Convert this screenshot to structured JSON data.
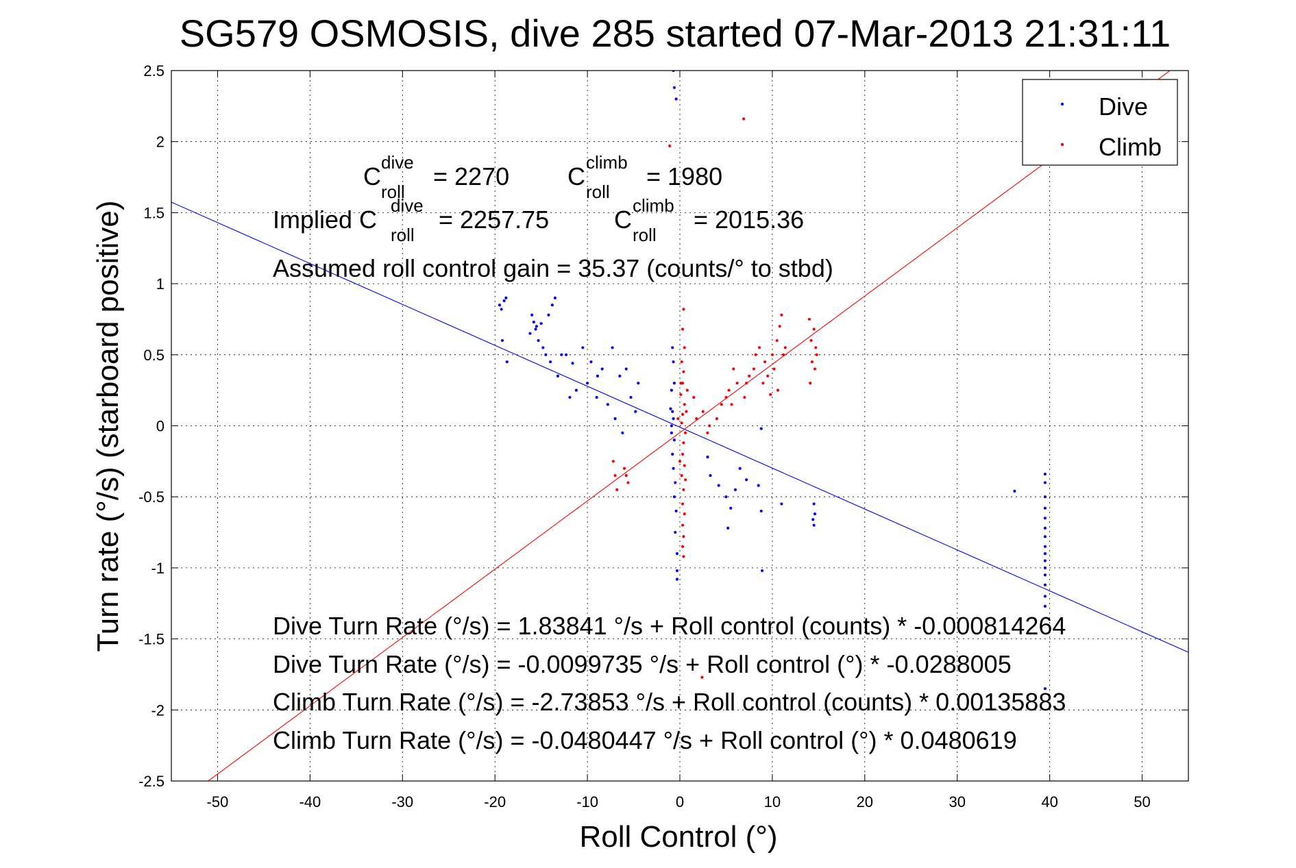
{
  "chart_data": {
    "type": "scatter",
    "title": "SG579 OSMOSIS, dive 285 started 07-Mar-2013 21:31:11",
    "xlabel": "Roll Control (°)",
    "ylabel": "Turn rate (°/s) (starboard positive)",
    "xlim": [
      -55,
      55
    ],
    "ylim": [
      -2.5,
      2.5
    ],
    "xticks": [
      -50,
      -40,
      -30,
      -20,
      -10,
      0,
      10,
      20,
      30,
      40,
      50
    ],
    "yticks": [
      -2.5,
      -2,
      -1.5,
      -1,
      -0.5,
      0,
      0.5,
      1,
      1.5,
      2,
      2.5
    ],
    "grid": "dotted",
    "legend_position": "top-right",
    "series": [
      {
        "name": "Dive",
        "color": "#0000ff",
        "points": [
          [
            -19.5,
            0.85
          ],
          [
            -19.3,
            0.82
          ],
          [
            -19.0,
            0.88
          ],
          [
            -18.8,
            0.9
          ],
          [
            -19.2,
            0.6
          ],
          [
            -18.7,
            0.45
          ],
          [
            -16.0,
            0.78
          ],
          [
            -15.8,
            0.73
          ],
          [
            -15.5,
            0.7
          ],
          [
            -16.2,
            0.65
          ],
          [
            -15.3,
            0.6
          ],
          [
            -15.0,
            0.72
          ],
          [
            -14.8,
            0.55
          ],
          [
            -14.5,
            0.5
          ],
          [
            -15.6,
            0.68
          ],
          [
            -14.2,
            0.78
          ],
          [
            -13.8,
            0.85
          ],
          [
            -13.5,
            0.9
          ],
          [
            -14.0,
            0.45
          ],
          [
            -12.8,
            0.5
          ],
          [
            -12.3,
            0.5
          ],
          [
            -11.6,
            0.44
          ],
          [
            -11.2,
            0.25
          ],
          [
            -10.5,
            0.55
          ],
          [
            -10.0,
            0.3
          ],
          [
            -9.6,
            0.45
          ],
          [
            -9.0,
            0.2
          ],
          [
            -8.4,
            0.4
          ],
          [
            -7.8,
            0.15
          ],
          [
            -7.3,
            0.55
          ],
          [
            -7.0,
            0.05
          ],
          [
            -6.5,
            0.35
          ],
          [
            -5.8,
            0.4
          ],
          [
            -5.3,
            0.2
          ],
          [
            -4.8,
            0.1
          ],
          [
            -4.5,
            0.3
          ],
          [
            -13.2,
            0.35
          ],
          [
            -11.9,
            0.2
          ],
          [
            -8.9,
            0.35
          ],
          [
            -6.2,
            -0.05
          ],
          [
            -0.7,
            2.5
          ],
          [
            -0.6,
            2.38
          ],
          [
            -0.4,
            2.3
          ],
          [
            -0.8,
            0.55
          ],
          [
            -0.7,
            0.45
          ],
          [
            -0.6,
            0.3
          ],
          [
            -0.9,
            0.25
          ],
          [
            -0.8,
            0.1
          ],
          [
            -0.7,
            0.05
          ],
          [
            -0.9,
            0.0
          ],
          [
            -0.6,
            -0.1
          ],
          [
            -0.8,
            -0.2
          ],
          [
            -0.7,
            -0.3
          ],
          [
            -0.5,
            -0.4
          ],
          [
            -0.6,
            -0.5
          ],
          [
            -0.4,
            -0.6
          ],
          [
            -0.5,
            -0.75
          ],
          [
            -0.3,
            -0.9
          ],
          [
            -0.3,
            -1.02
          ],
          [
            -0.3,
            -1.08
          ],
          [
            -0.9,
            -0.05
          ],
          [
            -1.0,
            0.12
          ],
          [
            3.0,
            -0.22
          ],
          [
            3.3,
            -0.35
          ],
          [
            4.2,
            -0.42
          ],
          [
            5.0,
            -0.5
          ],
          [
            5.2,
            -0.72
          ],
          [
            5.5,
            -0.58
          ],
          [
            6.0,
            -0.45
          ],
          [
            6.5,
            -0.3
          ],
          [
            7.2,
            -0.38
          ],
          [
            8.5,
            -0.42
          ],
          [
            8.8,
            -0.6
          ],
          [
            8.9,
            -1.02
          ],
          [
            11.0,
            -0.55
          ],
          [
            14.5,
            -0.55
          ],
          [
            14.6,
            -0.62
          ],
          [
            14.5,
            -0.7
          ],
          [
            14.4,
            -0.66
          ],
          [
            8.8,
            -0.02
          ],
          [
            36.2,
            -0.46
          ],
          [
            39.5,
            -0.34
          ],
          [
            39.5,
            -0.4
          ],
          [
            39.5,
            -0.5
          ],
          [
            39.5,
            -0.58
          ],
          [
            39.5,
            -0.65
          ],
          [
            39.5,
            -0.72
          ],
          [
            39.5,
            -0.78
          ],
          [
            39.5,
            -0.85
          ],
          [
            39.5,
            -0.9
          ],
          [
            39.5,
            -0.95
          ],
          [
            39.5,
            -1.0
          ],
          [
            39.5,
            -1.05
          ],
          [
            39.5,
            -1.12
          ],
          [
            39.5,
            -1.2
          ],
          [
            39.5,
            -1.27
          ],
          [
            39.5,
            -1.85
          ]
        ]
      },
      {
        "name": "Climb",
        "color": "#ff0000",
        "points": [
          [
            -7.2,
            -0.25
          ],
          [
            -7.0,
            -0.35
          ],
          [
            -6.8,
            -0.45
          ],
          [
            -6.0,
            -0.3
          ],
          [
            -5.8,
            -0.35
          ],
          [
            -5.6,
            -0.4
          ],
          [
            -1.1,
            1.97
          ],
          [
            6.9,
            2.16
          ],
          [
            2.4,
            -1.77
          ],
          [
            0.4,
            0.82
          ],
          [
            0.3,
            0.68
          ],
          [
            0.5,
            0.55
          ],
          [
            0.2,
            0.45
          ],
          [
            0.4,
            0.38
          ],
          [
            0.3,
            0.3
          ],
          [
            0.1,
            0.22
          ],
          [
            0.5,
            0.15
          ],
          [
            0.3,
            0.08
          ],
          [
            0.2,
            0.02
          ],
          [
            0.6,
            -0.05
          ],
          [
            0.4,
            -0.12
          ],
          [
            0.3,
            -0.2
          ],
          [
            0.5,
            -0.28
          ],
          [
            0.2,
            -0.35
          ],
          [
            0.4,
            -0.45
          ],
          [
            0.3,
            -0.55
          ],
          [
            0.5,
            -0.62
          ],
          [
            0.3,
            -0.7
          ],
          [
            0.4,
            -0.78
          ],
          [
            0.3,
            -0.85
          ],
          [
            0.4,
            -0.92
          ],
          [
            0.1,
            0.3
          ],
          [
            0.7,
            0.1
          ],
          [
            -0.2,
            0.05
          ],
          [
            0.0,
            -0.25
          ],
          [
            0.8,
            0.25
          ],
          [
            0.6,
            -0.38
          ],
          [
            1.5,
            0.2
          ],
          [
            1.8,
            0.05
          ],
          [
            2.5,
            0.1
          ],
          [
            3.0,
            -0.05
          ],
          [
            3.2,
            0.0
          ],
          [
            4.0,
            0.05
          ],
          [
            4.5,
            0.15
          ],
          [
            5.0,
            0.2
          ],
          [
            5.3,
            0.25
          ],
          [
            5.8,
            0.4
          ],
          [
            5.6,
            0.15
          ],
          [
            6.2,
            0.3
          ],
          [
            7.0,
            0.2
          ],
          [
            7.2,
            0.3
          ],
          [
            7.5,
            0.35
          ],
          [
            8.0,
            0.4
          ],
          [
            8.2,
            0.5
          ],
          [
            8.6,
            0.55
          ],
          [
            9.0,
            0.3
          ],
          [
            9.2,
            0.45
          ],
          [
            9.5,
            0.35
          ],
          [
            10.0,
            0.5
          ],
          [
            10.2,
            0.4
          ],
          [
            10.5,
            0.6
          ],
          [
            10.8,
            0.7
          ],
          [
            11.0,
            0.78
          ],
          [
            11.2,
            0.5
          ],
          [
            11.4,
            0.55
          ],
          [
            10.6,
            0.25
          ],
          [
            9.8,
            0.22
          ],
          [
            14.0,
            0.75
          ],
          [
            14.2,
            0.6
          ],
          [
            14.5,
            0.68
          ],
          [
            14.7,
            0.55
          ],
          [
            14.3,
            0.45
          ],
          [
            14.6,
            0.4
          ],
          [
            14.8,
            0.5
          ],
          [
            14.1,
            0.3
          ]
        ]
      }
    ],
    "fit_lines": [
      {
        "series": "Dive",
        "color": "#0000ff",
        "intercept": -0.0099735,
        "slope": -0.0288005
      },
      {
        "series": "Climb",
        "color": "#ff0000",
        "intercept": -0.0480447,
        "slope": 0.0480619
      }
    ],
    "annotations": {
      "c_dive": {
        "base": "C",
        "sup": "dive",
        "sub": "roll",
        "value": "= 2270"
      },
      "c_climb": {
        "base": "C",
        "sup": "climb",
        "sub": "roll",
        "value": "= 1980"
      },
      "implied_prefix": "Implied C",
      "implied_dive": {
        "sup": "dive",
        "sub": "roll",
        "value": "= 2257.75"
      },
      "implied_climb": {
        "base": "C",
        "sup": "climb",
        "sub": "roll",
        "value": "= 2015.36"
      },
      "gain": "Assumed roll control gain = 35.37 (counts/° to stbd)",
      "equations": [
        "Dive Turn Rate (°/s) = 1.83841 °/s + Roll control (counts) * -0.000814264",
        "Dive Turn Rate (°/s) = -0.0099735 °/s + Roll control (°) * -0.0288005",
        "Climb Turn Rate (°/s) = -2.73853 °/s + Roll control (counts) * 0.00135883",
        "Climb Turn Rate (°/s) = -0.0480447 °/s + Roll control (°) * 0.0480619"
      ]
    }
  }
}
